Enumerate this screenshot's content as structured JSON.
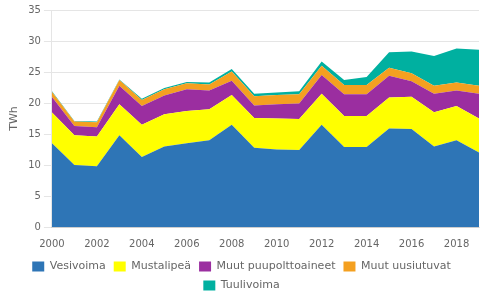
{
  "chart_data": {
    "type": "area",
    "stacked": true,
    "x": [
      2000,
      2001,
      2002,
      2003,
      2004,
      2005,
      2006,
      2007,
      2008,
      2009,
      2010,
      2011,
      2012,
      2013,
      2014,
      2015,
      2016,
      2017,
      2018,
      2019
    ],
    "xlim": [
      2000,
      2019
    ],
    "xticks": [
      2000,
      2002,
      2004,
      2006,
      2008,
      2010,
      2012,
      2014,
      2016,
      2018
    ],
    "ylabel": "TWh",
    "ylim": [
      0,
      35
    ],
    "yticks": [
      0,
      5,
      10,
      15,
      20,
      25,
      30,
      35
    ],
    "grid": "y",
    "legend": "bottom",
    "series": [
      {
        "name": "Vesivoima",
        "color": "#2E75B6",
        "values": [
          13.5,
          10.0,
          9.8,
          14.8,
          11.3,
          13.0,
          13.5,
          14.0,
          16.5,
          12.8,
          12.5,
          12.4,
          16.5,
          12.9,
          12.9,
          15.9,
          15.8,
          13.0,
          14.0,
          12.0
        ]
      },
      {
        "name": "Mustalipeä",
        "color": "#FFFF00",
        "values": [
          5.0,
          4.8,
          4.8,
          5.0,
          5.2,
          5.2,
          5.2,
          5.0,
          4.8,
          4.8,
          5.0,
          5.0,
          5.0,
          5.0,
          5.0,
          5.0,
          5.2,
          5.5,
          5.5,
          5.5
        ]
      },
      {
        "name": "Muut puupolttoaineet",
        "color": "#9B2EA0",
        "values": [
          2.5,
          1.5,
          1.5,
          3.0,
          3.0,
          3.0,
          3.5,
          3.0,
          2.3,
          2.0,
          2.3,
          2.5,
          3.0,
          3.5,
          3.5,
          3.5,
          2.5,
          3.0,
          2.5,
          4.0
        ]
      },
      {
        "name": "Muut uusiutuvat",
        "color": "#F4A020",
        "values": [
          0.8,
          0.7,
          0.8,
          0.9,
          1.0,
          1.0,
          1.0,
          1.0,
          1.5,
          1.5,
          1.5,
          1.5,
          1.5,
          1.5,
          1.5,
          1.3,
          1.3,
          1.3,
          1.3,
          1.3
        ]
      },
      {
        "name": "Tuulivoima",
        "color": "#00B0A0",
        "values": [
          0.1,
          0.1,
          0.1,
          0.1,
          0.2,
          0.2,
          0.2,
          0.3,
          0.4,
          0.4,
          0.4,
          0.5,
          0.7,
          0.8,
          1.3,
          2.5,
          3.5,
          4.8,
          5.5,
          5.8
        ]
      }
    ]
  }
}
